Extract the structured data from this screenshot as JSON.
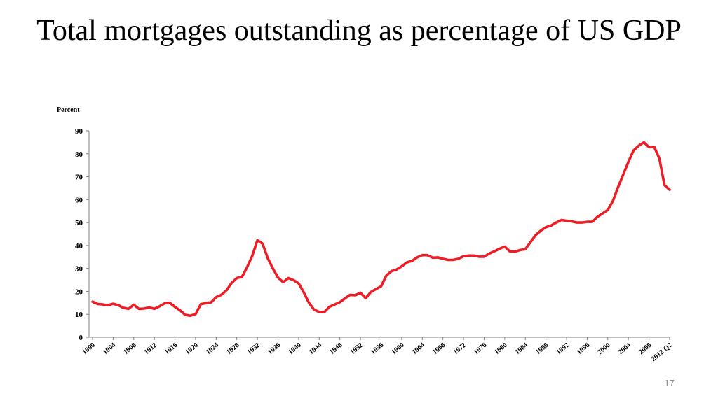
{
  "slide": {
    "title": "Total mortgages outstanding as percentage of US GDP",
    "page_number": "17"
  },
  "chart_data": {
    "type": "line",
    "title": "",
    "ylabel": "Percent",
    "xlabel": "",
    "ylim": [
      0,
      90
    ],
    "yticks": [
      0,
      10,
      20,
      30,
      40,
      50,
      60,
      70,
      80,
      90
    ],
    "grid": false,
    "series_color": "#ee1c24",
    "xtick_labels": [
      "1900",
      "1904",
      "1908",
      "1912",
      "1916",
      "1920",
      "1924",
      "1928",
      "1932",
      "1936",
      "1940",
      "1944",
      "1948",
      "1952",
      "1956",
      "1960",
      "1964",
      "1968",
      "1972",
      "1976",
      "1980",
      "1984",
      "1988",
      "1992",
      "1996",
      "2000",
      "2004",
      "2008",
      "2012 Q2"
    ],
    "series": [
      {
        "name": "",
        "x": [
          "1900",
          "1901",
          "1902",
          "1903",
          "1904",
          "1905",
          "1906",
          "1907",
          "1908",
          "1909",
          "1910",
          "1911",
          "1912",
          "1913",
          "1914",
          "1915",
          "1916",
          "1917",
          "1918",
          "1919",
          "1920",
          "1921",
          "1922",
          "1923",
          "1924",
          "1925",
          "1926",
          "1927",
          "1928",
          "1929",
          "1930",
          "1931",
          "1932",
          "1933",
          "1934",
          "1935",
          "1936",
          "1937",
          "1938",
          "1939",
          "1940",
          "1941",
          "1942",
          "1943",
          "1944",
          "1945",
          "1946",
          "1947",
          "1948",
          "1949",
          "1950",
          "1951",
          "1952",
          "1953",
          "1954",
          "1955",
          "1956",
          "1957",
          "1958",
          "1959",
          "1960",
          "1961",
          "1962",
          "1963",
          "1964",
          "1965",
          "1966",
          "1967",
          "1968",
          "1969",
          "1970",
          "1971",
          "1972",
          "1973",
          "1974",
          "1975",
          "1976",
          "1977",
          "1978",
          "1979",
          "1980",
          "1981",
          "1982",
          "1983",
          "1984",
          "1985",
          "1986",
          "1987",
          "1988",
          "1989",
          "1990",
          "1991",
          "1992",
          "1993",
          "1994",
          "1995",
          "1996",
          "1997",
          "1998",
          "1999",
          "2000",
          "2001",
          "2002",
          "2003",
          "2004",
          "2005",
          "2006",
          "2007",
          "2008",
          "2009",
          "2010",
          "2011",
          "2012 Q2"
        ],
        "values": [
          15.5,
          14.5,
          14.3,
          14.0,
          14.6,
          14.0,
          12.8,
          12.4,
          14.2,
          12.4,
          12.5,
          13.0,
          12.4,
          13.5,
          14.8,
          15.0,
          13.2,
          11.7,
          9.7,
          9.4,
          10.1,
          14.4,
          14.9,
          15.2,
          17.5,
          18.5,
          20.5,
          23.7,
          25.8,
          26.3,
          30.5,
          35.5,
          42.3,
          40.8,
          34.5,
          30.0,
          26.0,
          24.0,
          25.8,
          24.9,
          23.5,
          19.5,
          15.0,
          12.0,
          11.0,
          11.0,
          13.3,
          14.3,
          15.3,
          17.0,
          18.5,
          18.3,
          19.4,
          17.0,
          19.7,
          21.0,
          22.2,
          26.8,
          28.8,
          29.5,
          30.9,
          32.6,
          33.3,
          34.8,
          35.8,
          35.8,
          34.7,
          34.8,
          34.2,
          33.7,
          33.7,
          34.2,
          35.3,
          35.6,
          35.6,
          35.1,
          35.1,
          36.5,
          37.5,
          38.6,
          39.5,
          37.4,
          37.3,
          38.0,
          38.4,
          41.5,
          44.5,
          46.5,
          48.0,
          48.7,
          50.0,
          51.1,
          50.8,
          50.5,
          50.0,
          50.0,
          50.3,
          50.3,
          52.5,
          54.0,
          55.5,
          59.5,
          65.5,
          71.0,
          76.5,
          81.5,
          83.5,
          85.0,
          82.9,
          83.0,
          78.0,
          66.3,
          64.3
        ]
      }
    ]
  }
}
